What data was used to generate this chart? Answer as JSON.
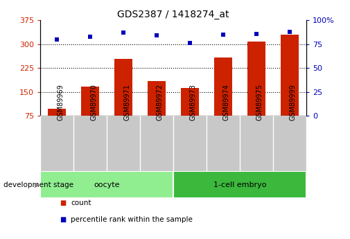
{
  "title": "GDS2387 / 1418274_at",
  "samples": [
    "GSM89969",
    "GSM89970",
    "GSM89971",
    "GSM89972",
    "GSM89973",
    "GSM89974",
    "GSM89975",
    "GSM89999"
  ],
  "counts": [
    97,
    168,
    255,
    185,
    163,
    258,
    308,
    330
  ],
  "percentile_ranks": [
    80,
    83,
    87,
    84,
    76,
    85,
    86,
    88
  ],
  "groups": [
    {
      "label": "oocyte",
      "indices": [
        0,
        1,
        2,
        3
      ],
      "color": "#90EE90"
    },
    {
      "label": "1-cell embryo",
      "indices": [
        4,
        5,
        6,
        7
      ],
      "color": "#3CB83C"
    }
  ],
  "ylim_left": [
    75,
    375
  ],
  "ylim_right": [
    0,
    100
  ],
  "yticks_left": [
    75,
    150,
    225,
    300,
    375
  ],
  "yticks_right": [
    0,
    25,
    50,
    75,
    100
  ],
  "bar_color": "#CC2200",
  "dot_color": "#0000BB",
  "grid_yticks": [
    150,
    225,
    300
  ],
  "label_area_bg": "#C8C8C8",
  "ylabel_left_color": "#CC2200",
  "ylabel_right_color": "#0000BB",
  "legend_count_label": "count",
  "legend_pct_label": "percentile rank within the sample",
  "group_label": "development stage"
}
